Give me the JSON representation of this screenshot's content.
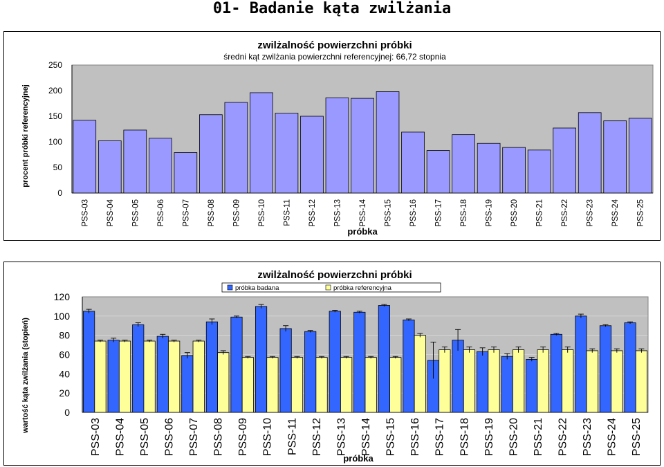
{
  "page": {
    "title": "01- Badanie kąta zwilżania"
  },
  "chart_data": [
    {
      "type": "bar",
      "title": "zwilżalność powierzchni próbki",
      "subtitle": "średni kąt zwilżania powierzchni referencyjnej: 66,72 stopnia",
      "xlabel": "próbka",
      "ylabel": "procent próbki referencyjnej",
      "ylim": [
        0,
        250
      ],
      "yticks": [
        "0",
        "50",
        "100",
        "150",
        "200",
        "250"
      ],
      "grid": false,
      "categories": [
        "PSS-03",
        "PSS-04",
        "PSS-05",
        "PSS-06",
        "PSS-07",
        "PSS-08",
        "PSS-09",
        "PSS-10",
        "PSS-11",
        "PSS-12",
        "PSS-13",
        "PSS-14",
        "PSS-15",
        "PSS-16",
        "PSS-17",
        "PSS-18",
        "PSS-19",
        "PSS-20",
        "PSS-21",
        "PSS-22",
        "PSS-23",
        "PSS-24",
        "PSS-25"
      ],
      "values": [
        142,
        102,
        123,
        107,
        79,
        153,
        177,
        196,
        156,
        150,
        186,
        185,
        198,
        119,
        83,
        114,
        97,
        89,
        84,
        127,
        157,
        141,
        146
      ],
      "colors": {
        "bar": "#9999ff",
        "plot_bg": "#c0c0c0"
      }
    },
    {
      "type": "bar",
      "title": "zwilżalność powierzchni próbki",
      "xlabel": "próbka",
      "ylabel": "wartość kąta zwilżania (stopień)",
      "ylim": [
        0,
        120
      ],
      "yticks": [
        "0",
        "20",
        "40",
        "60",
        "80",
        "100",
        "120"
      ],
      "grid": true,
      "legend": "top-center",
      "categories": [
        "PSS-03",
        "PSS-04",
        "PSS-05",
        "PSS-06",
        "PSS-07",
        "PSS-08",
        "PSS-09",
        "PSS-10",
        "PSS-11",
        "PSS-12",
        "PSS-13",
        "PSS-14",
        "PSS-15",
        "PSS-16",
        "PSS-17",
        "PSS-18",
        "PSS-19",
        "PSS-20",
        "PSS-21",
        "PSS-22",
        "PSS-23",
        "PSS-24",
        "PSS-25"
      ],
      "series": [
        {
          "name": "próbka badana",
          "color": "#3366ff",
          "values": [
            105,
            75,
            91,
            79,
            59,
            94,
            99,
            110,
            87,
            84,
            105,
            104,
            111,
            96,
            54,
            75,
            63,
            58,
            55,
            81,
            100,
            90,
            93
          ],
          "errors": [
            2,
            2,
            2,
            2,
            3,
            3,
            1,
            2,
            3,
            1,
            1,
            1,
            1,
            1,
            19,
            11,
            4,
            3,
            2,
            1,
            2,
            1,
            1
          ]
        },
        {
          "name": "próbka referencyjna",
          "color": "#ffff99",
          "values": [
            74,
            74,
            74,
            74,
            74,
            62,
            57,
            57,
            57,
            57,
            57,
            57,
            57,
            80,
            65,
            65,
            65,
            65,
            65,
            65,
            64,
            64,
            64
          ],
          "errors": [
            1,
            1,
            1,
            1,
            1,
            2,
            1,
            1,
            1,
            1,
            1,
            1,
            1,
            2,
            3,
            3,
            3,
            3,
            3,
            3,
            2,
            2,
            2
          ]
        }
      ],
      "colors": {
        "plot_bg": "#c0c0c0",
        "grid": "#d8d8d8"
      }
    }
  ]
}
